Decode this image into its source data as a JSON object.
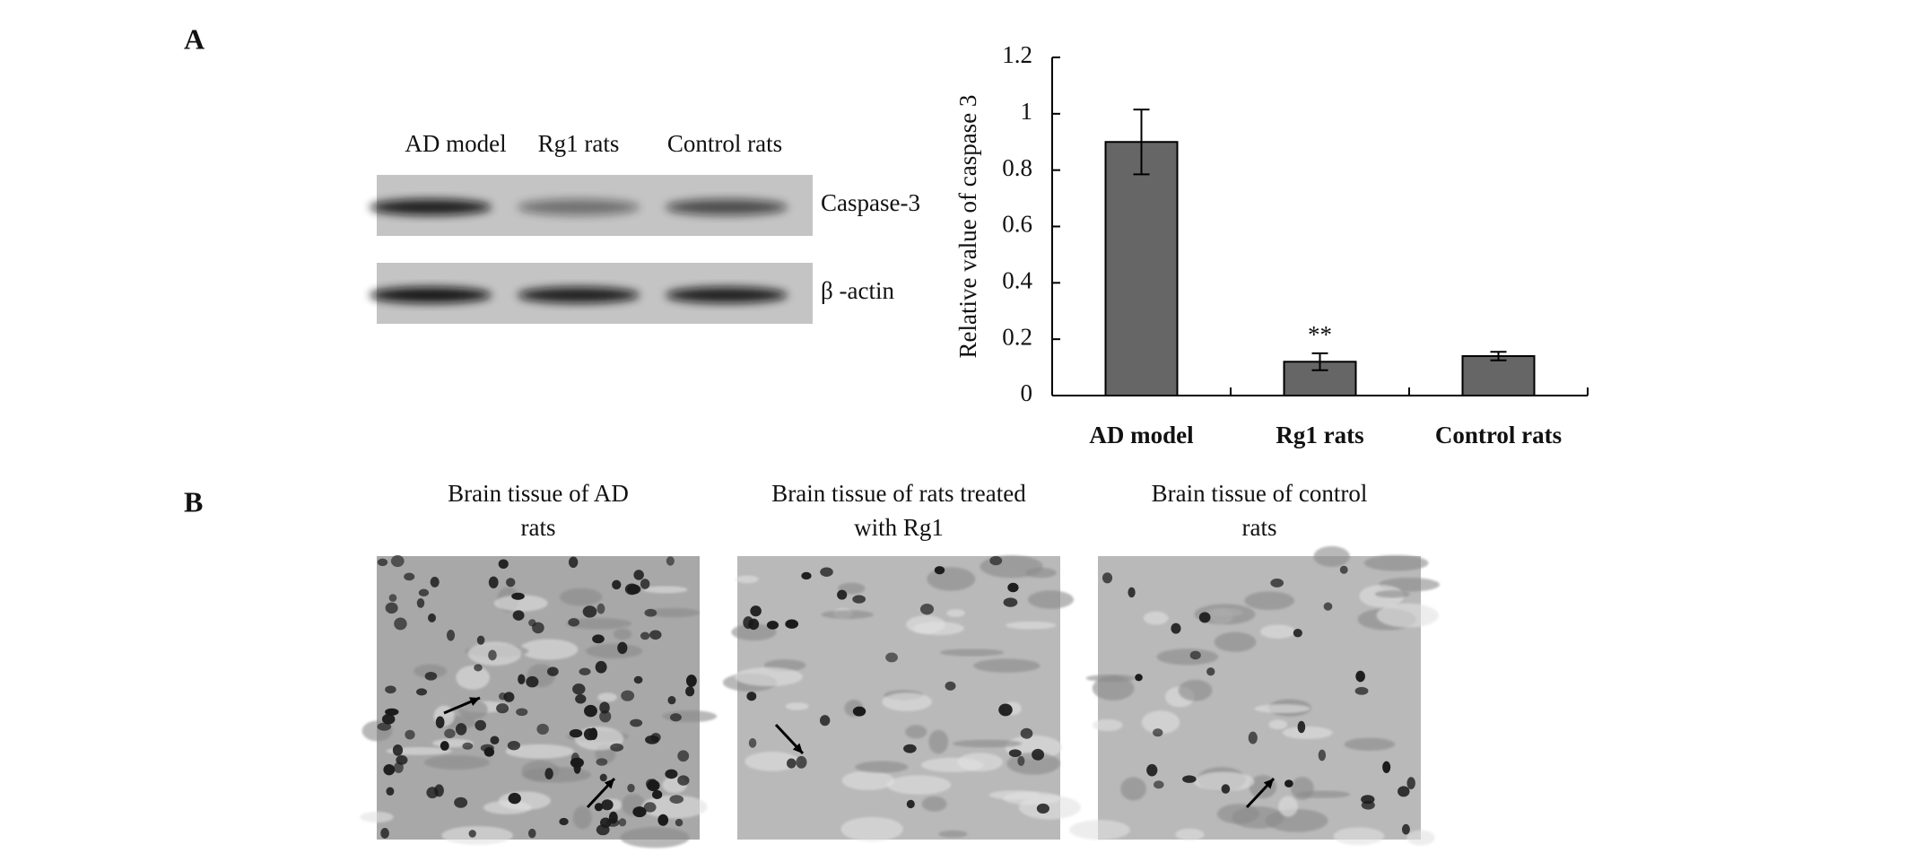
{
  "panel_labels": [
    "A",
    "B"
  ],
  "blot": {
    "lanes": [
      "AD model",
      "Rg1 rats",
      "Control rats"
    ],
    "bands": [
      "Caspase-3",
      "β -actin"
    ]
  },
  "chart_data": {
    "type": "bar",
    "ylabel": "Relative value of caspase 3",
    "categories": [
      "AD model",
      "Rg1 rats",
      "Control rats"
    ],
    "values": [
      0.9,
      0.12,
      0.14
    ],
    "errors": [
      0.115,
      0.03,
      0.015
    ],
    "value_annotations": [
      null,
      "**",
      null
    ],
    "color": "#666666",
    "ylim": [
      0,
      1.2
    ],
    "yticks": [
      0,
      0.2,
      0.4,
      0.6,
      0.8,
      1,
      1.2
    ],
    "grid": false
  },
  "micrographs": [
    {
      "caption": "Brain tissue of AD rats"
    },
    {
      "caption": "Brain tissue of rats treated with Rg1"
    },
    {
      "caption": "Brain tissue of control rats"
    }
  ]
}
